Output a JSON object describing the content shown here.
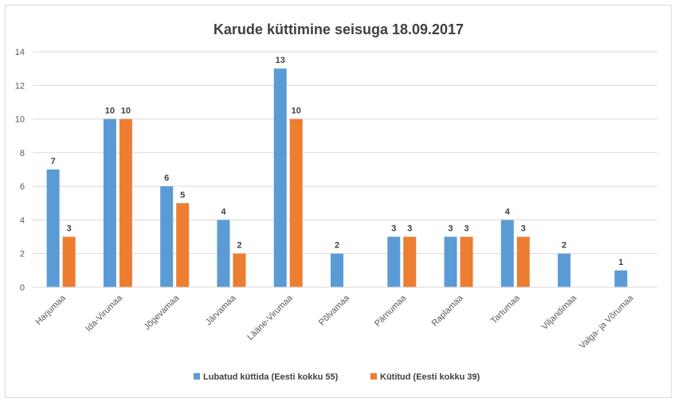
{
  "chart_data": {
    "type": "bar",
    "title": "Karude küttimine seisuga 18.09.2017",
    "xlabel": "",
    "ylabel": "",
    "ylim": [
      0,
      14
    ],
    "yticks": [
      0,
      2,
      4,
      6,
      8,
      10,
      12,
      14
    ],
    "grid": true,
    "legend_position": "bottom",
    "categories": [
      "Harjumaa",
      "Ida-Virumaa",
      "Jõgevamaa",
      "Järvamaa",
      "Lääne-Virumaa",
      "Põlvamaa",
      "Pärnumaa",
      "Raplamaa",
      "Tartumaa",
      "Viljandimaa",
      "Valga- ja Võrumaa"
    ],
    "series": [
      {
        "name": "Lubatud küttida (Eesti kokku 55)",
        "color": "#5b9bd5",
        "values": [
          7,
          10,
          6,
          4,
          13,
          2,
          3,
          3,
          4,
          2,
          1
        ]
      },
      {
        "name": "Kütitud (Eesti kokku 39)",
        "color": "#ed7d31",
        "values": [
          3,
          10,
          5,
          2,
          10,
          null,
          3,
          3,
          3,
          null,
          null
        ]
      }
    ]
  }
}
